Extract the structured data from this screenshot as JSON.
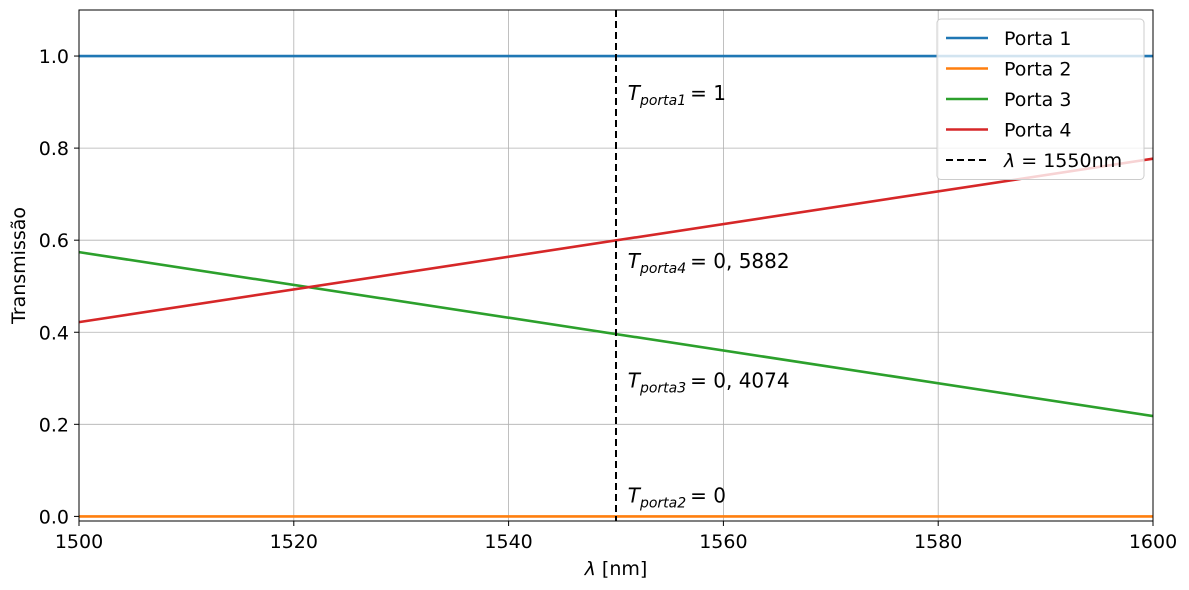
{
  "chart_data": {
    "type": "line",
    "xlabel_symbol": "λ",
    "xlabel_unit": "[nm]",
    "ylabel": "Transmissão",
    "xlim": [
      1500,
      1600
    ],
    "ylim": [
      -0.01,
      1.1
    ],
    "xticks": [
      1500,
      1520,
      1540,
      1560,
      1580,
      1600
    ],
    "yticks": [
      0.0,
      0.2,
      0.4,
      0.6,
      0.8,
      1.0
    ],
    "xtick_labels": [
      "1500",
      "1520",
      "1540",
      "1560",
      "1580",
      "1600"
    ],
    "ytick_labels": [
      "0.0",
      "0.2",
      "0.4",
      "0.6",
      "0.8",
      "1.0"
    ],
    "grid": true,
    "legend_position": "top-right",
    "series": [
      {
        "name": "Porta 1",
        "color": "#1f77b4",
        "x": [
          1500,
          1600
        ],
        "y": [
          1.0,
          1.0
        ]
      },
      {
        "name": "Porta 2",
        "color": "#ff7f0e",
        "x": [
          1500,
          1600
        ],
        "y": [
          0.0,
          0.0
        ]
      },
      {
        "name": "Porta 3",
        "color": "#2ca02c",
        "x": [
          1500,
          1600
        ],
        "y": [
          0.574,
          0.218
        ]
      },
      {
        "name": "Porta 4",
        "color": "#d62728",
        "x": [
          1500,
          1600
        ],
        "y": [
          0.422,
          0.777
        ]
      }
    ],
    "vline": {
      "x": 1550,
      "color": "#000000",
      "style": "dashed",
      "legend_symbol": "λ",
      "legend_value": "= 1550nm"
    },
    "annotations": [
      {
        "T": "T",
        "sub": "porta1",
        "value": "= 1",
        "x": 1551,
        "y": 0.905
      },
      {
        "T": "T",
        "sub": "porta4",
        "value": "= 0, 5882",
        "x": 1551,
        "y": 0.54
      },
      {
        "T": "T",
        "sub": "porta3",
        "value": "= 0, 4074",
        "x": 1551,
        "y": 0.28
      },
      {
        "T": "T",
        "sub": "porta2",
        "value": "= 0",
        "x": 1551,
        "y": 0.03
      }
    ]
  }
}
